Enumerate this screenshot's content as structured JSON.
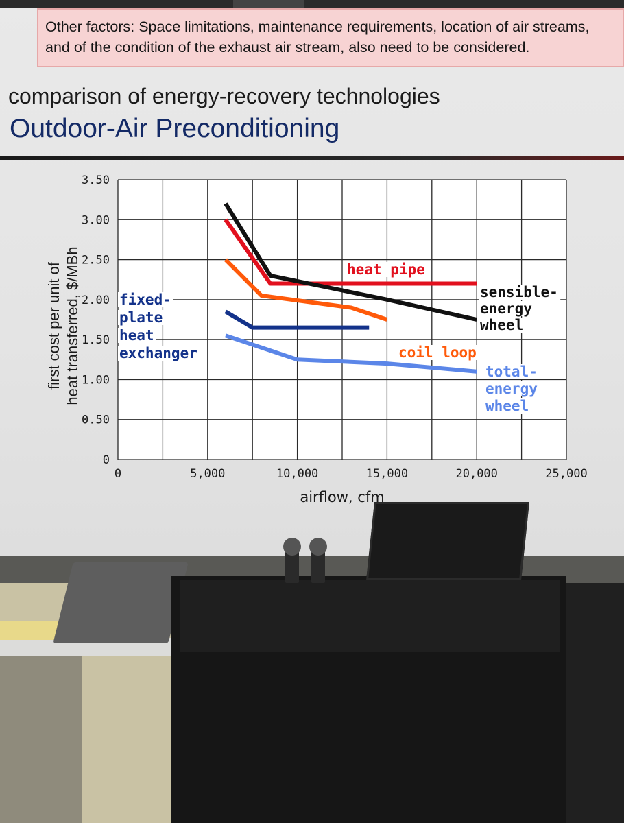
{
  "slide": {
    "note_line1": "Other factors: Space limitations, maintenance requirements, location of air streams,",
    "note_line2": "and of the condition of the exhaust air stream, also need to be considered.",
    "subtitle": "comparison of energy-recovery technologies",
    "title": "Outdoor-Air Preconditioning"
  },
  "chart_data": {
    "type": "line",
    "xlabel": "airflow, cfm",
    "ylabel_line1": "first cost per unit of",
    "ylabel_line2": "heat transferred, $/MBh",
    "xlim": [
      0,
      25000
    ],
    "ylim": [
      0,
      3.5
    ],
    "x_ticks": [
      0,
      5000,
      10000,
      15000,
      20000,
      25000
    ],
    "x_tick_labels": [
      "0",
      "5,000",
      "10,000",
      "15,000",
      "20,000",
      "25,000"
    ],
    "y_ticks": [
      0,
      0.5,
      1.0,
      1.5,
      2.0,
      2.5,
      3.0,
      3.5
    ],
    "y_tick_labels": [
      "0",
      "0.50",
      "1.00",
      "1.50",
      "2.00",
      "2.50",
      "3.00",
      "3.50"
    ],
    "grid": true,
    "series": [
      {
        "name": "heat pipe",
        "color": "#e2101e",
        "label_lines": [
          "heat pipe"
        ],
        "points": [
          [
            6000,
            3.0
          ],
          [
            8500,
            2.2
          ],
          [
            15000,
            2.2
          ],
          [
            20000,
            2.2
          ]
        ]
      },
      {
        "name": "sensible-energy wheel",
        "color": "#111111",
        "label_lines": [
          "sensible-",
          "energy",
          "wheel"
        ],
        "points": [
          [
            6000,
            3.2
          ],
          [
            8500,
            2.3
          ],
          [
            15000,
            2.0
          ],
          [
            20000,
            1.75
          ]
        ]
      },
      {
        "name": "coil loop",
        "color": "#ff5a0a",
        "label_lines": [
          "coil loop"
        ],
        "points": [
          [
            6000,
            2.5
          ],
          [
            8000,
            2.05
          ],
          [
            13000,
            1.9
          ],
          [
            15000,
            1.75
          ]
        ]
      },
      {
        "name": "fixed-plate heat exchanger",
        "color": "#13328a",
        "label_lines": [
          "fixed-",
          "plate",
          "heat",
          "exchanger"
        ],
        "points": [
          [
            6000,
            1.85
          ],
          [
            7500,
            1.65
          ],
          [
            10000,
            1.65
          ],
          [
            14000,
            1.65
          ]
        ]
      },
      {
        "name": "total-energy wheel",
        "color": "#5b86e8",
        "label_lines": [
          "total-",
          "energy",
          "wheel"
        ],
        "points": [
          [
            6000,
            1.55
          ],
          [
            10000,
            1.25
          ],
          [
            15000,
            1.2
          ],
          [
            20000,
            1.1
          ]
        ]
      }
    ]
  }
}
